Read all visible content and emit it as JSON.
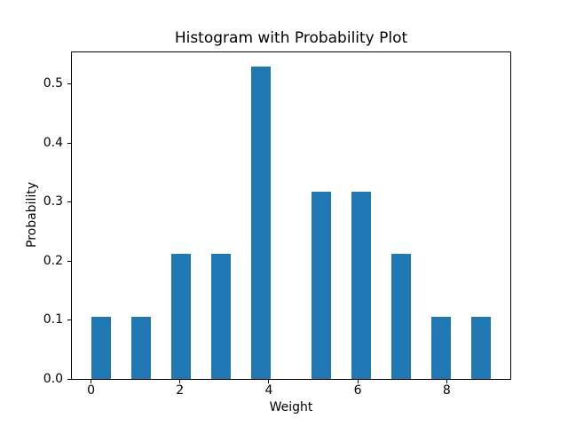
{
  "chart_data": {
    "type": "bar",
    "title": "Histogram with Probability Plot",
    "xlabel": "Weight",
    "ylabel": "Probability",
    "bar_color": "#1f77b4",
    "grid": false,
    "legend": null,
    "xlim": [
      -0.45,
      9.45
    ],
    "ylim": [
      0,
      0.5556
    ],
    "bar_width": 0.45,
    "xticks": [
      0,
      2,
      4,
      6,
      8
    ],
    "xtick_labels": [
      "0",
      "2",
      "4",
      "6",
      "8"
    ],
    "yticks": [
      0.0,
      0.1,
      0.2,
      0.3,
      0.4,
      0.5
    ],
    "ytick_labels": [
      "0.0",
      "0.1",
      "0.2",
      "0.3",
      "0.4",
      "0.5"
    ],
    "bars": [
      {
        "x_left": 0.0,
        "value": 0.106
      },
      {
        "x_left": 0.9,
        "value": 0.106
      },
      {
        "x_left": 1.8,
        "value": 0.212
      },
      {
        "x_left": 2.7,
        "value": 0.212
      },
      {
        "x_left": 3.6,
        "value": 0.529
      },
      {
        "x_left": 4.95,
        "value": 0.317
      },
      {
        "x_left": 5.85,
        "value": 0.317
      },
      {
        "x_left": 6.75,
        "value": 0.212
      },
      {
        "x_left": 7.65,
        "value": 0.106
      },
      {
        "x_left": 8.55,
        "value": 0.106
      }
    ]
  }
}
